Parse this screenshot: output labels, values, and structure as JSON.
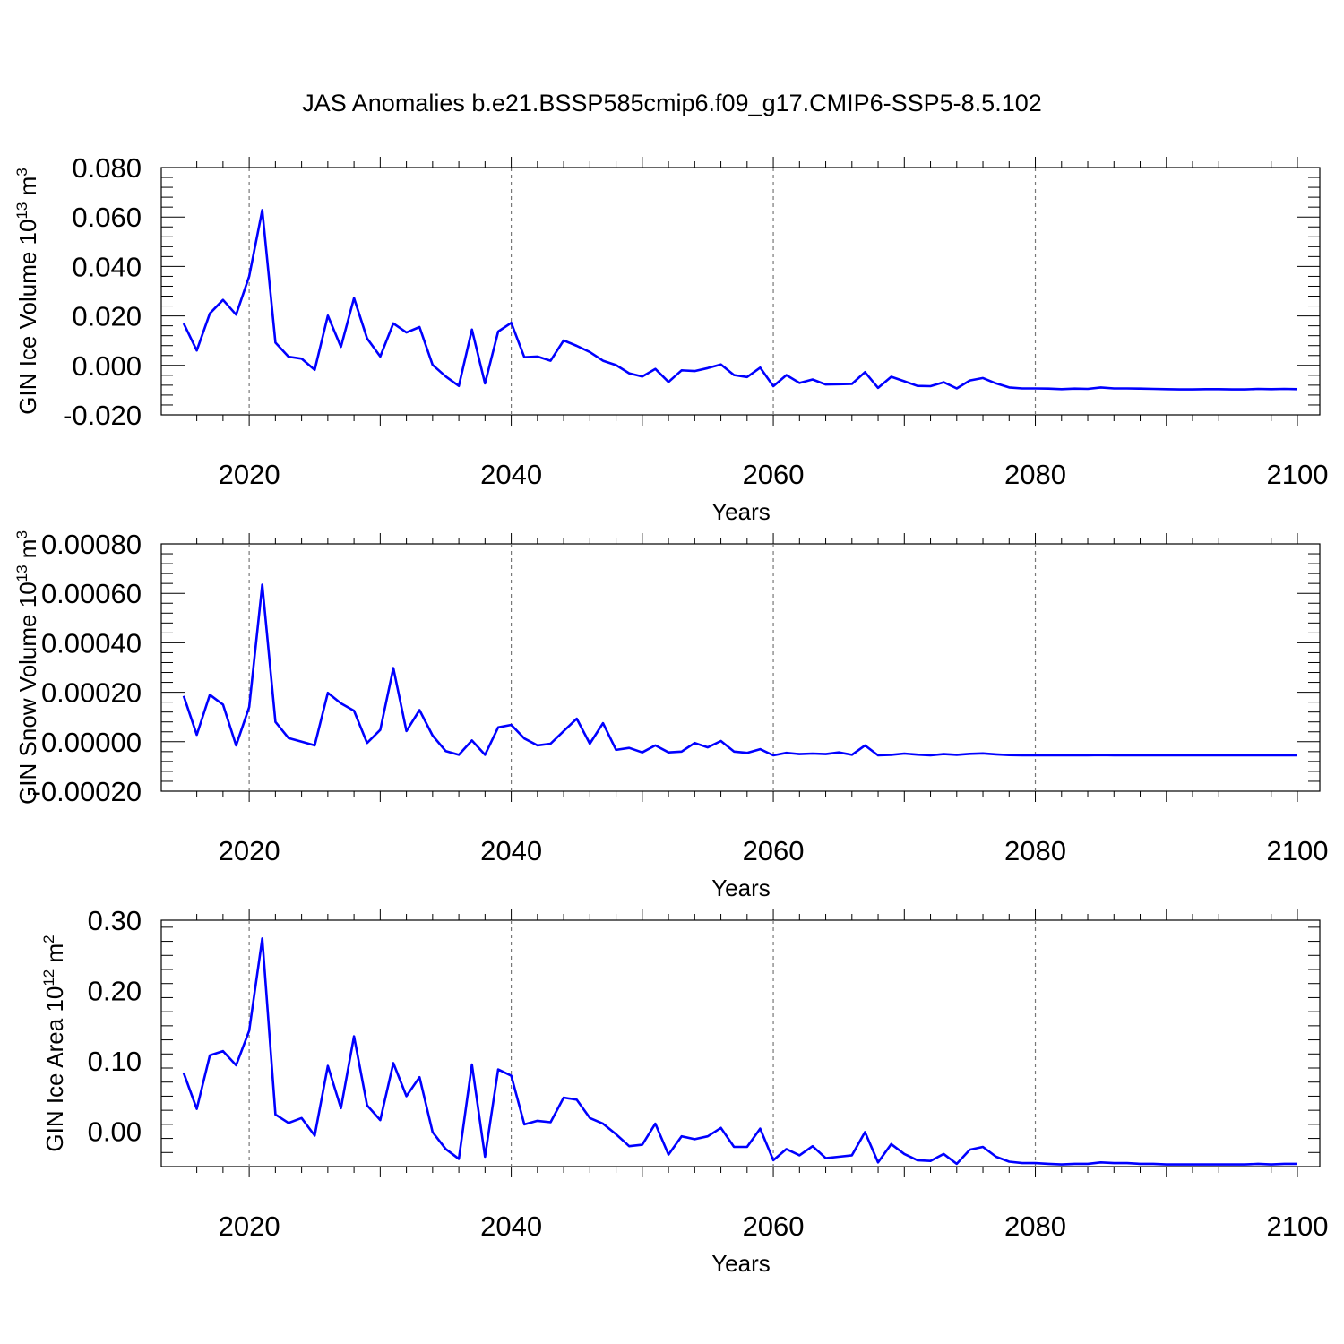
{
  "title": "JAS Anomalies b.e21.BSSP585cmip6.f09_g17.CMIP6-SSP5-8.5.102",
  "series_color": "#0000ff",
  "chart_data": [
    {
      "type": "line",
      "ylabel": {
        "main": "GIN Ice Volume 10",
        "exp": "13",
        "unit": " m",
        "unit_exp": "3"
      },
      "xlabel": "Years",
      "xlim": [
        2015,
        2100
      ],
      "ylim": [
        -0.02,
        0.08
      ],
      "yticks": [
        -0.02,
        0.0,
        0.02,
        0.04,
        0.06,
        0.08
      ],
      "ytick_labels": [
        "-0.020",
        "0.000",
        "0.020",
        "0.040",
        "0.060",
        "0.080"
      ],
      "xticks": [
        2020,
        2040,
        2060,
        2080,
        2100
      ],
      "xtick_labels": [
        "2020",
        "2040",
        "2060",
        "2080",
        "2100"
      ],
      "grid_x": [
        2020,
        2040,
        2060,
        2080
      ],
      "x": [
        2015,
        2016,
        2017,
        2018,
        2019,
        2020,
        2021,
        2022,
        2023,
        2024,
        2025,
        2026,
        2027,
        2028,
        2029,
        2030,
        2031,
        2032,
        2033,
        2034,
        2035,
        2036,
        2037,
        2038,
        2039,
        2040,
        2041,
        2042,
        2043,
        2044,
        2045,
        2046,
        2047,
        2048,
        2049,
        2050,
        2051,
        2052,
        2053,
        2054,
        2055,
        2056,
        2057,
        2058,
        2059,
        2060,
        2061,
        2062,
        2063,
        2064,
        2065,
        2066,
        2067,
        2068,
        2069,
        2070,
        2071,
        2072,
        2073,
        2074,
        2075,
        2076,
        2077,
        2078,
        2079,
        2080,
        2081,
        2082,
        2083,
        2084,
        2085,
        2086,
        2087,
        2088,
        2089,
        2090,
        2091,
        2092,
        2093,
        2094,
        2095,
        2096,
        2097,
        2098,
        2099,
        2100
      ],
      "y": [
        0.017,
        0.006,
        0.021,
        0.0265,
        0.0205,
        0.036,
        0.0628,
        0.0092,
        0.0035,
        0.0027,
        -0.0018,
        0.0201,
        0.0075,
        0.0272,
        0.0109,
        0.0036,
        0.017,
        0.0133,
        0.0155,
        0.0002,
        -0.0045,
        -0.0083,
        0.0145,
        -0.0073,
        0.0137,
        0.0172,
        0.0033,
        0.0036,
        0.0019,
        0.0101,
        0.0079,
        0.0054,
        0.0019,
        0.0001,
        -0.0032,
        -0.0045,
        -0.0014,
        -0.0067,
        -0.002,
        -0.0023,
        -0.0011,
        0.0004,
        -0.0039,
        -0.0047,
        -0.0009,
        -0.0084,
        -0.0039,
        -0.0071,
        -0.0057,
        -0.0077,
        -0.0076,
        -0.0075,
        -0.0027,
        -0.0091,
        -0.0046,
        -0.0064,
        -0.0083,
        -0.0084,
        -0.0068,
        -0.0093,
        -0.0061,
        -0.0051,
        -0.0073,
        -0.0089,
        -0.0093,
        -0.0093,
        -0.0094,
        -0.0096,
        -0.0094,
        -0.0095,
        -0.0089,
        -0.0093,
        -0.0093,
        -0.0094,
        -0.0095,
        -0.0096,
        -0.0097,
        -0.0097,
        -0.0096,
        -0.0096,
        -0.0097,
        -0.0097,
        -0.0095,
        -0.0096,
        -0.0095,
        -0.0096
      ]
    },
    {
      "type": "line",
      "ylabel": {
        "main": "GIN Snow Volume 10",
        "exp": "13",
        "unit": " m",
        "unit_exp": "3"
      },
      "xlabel": "Years",
      "xlim": [
        2015,
        2100
      ],
      "ylim": [
        -0.0002,
        0.0008
      ],
      "yticks": [
        -0.0002,
        0.0,
        0.0002,
        0.0004,
        0.0006,
        0.0008
      ],
      "ytick_labels": [
        "-0.00020",
        "0.00000",
        "0.00020",
        "0.00040",
        "0.00060",
        "0.00080"
      ],
      "xticks": [
        2020,
        2040,
        2060,
        2080,
        2100
      ],
      "xtick_labels": [
        "2020",
        "2040",
        "2060",
        "2080",
        "2100"
      ],
      "grid_x": [
        2020,
        2040,
        2060,
        2080
      ],
      "x": [
        2015,
        2016,
        2017,
        2018,
        2019,
        2020,
        2021,
        2022,
        2023,
        2024,
        2025,
        2026,
        2027,
        2028,
        2029,
        2030,
        2031,
        2032,
        2033,
        2034,
        2035,
        2036,
        2037,
        2038,
        2039,
        2040,
        2041,
        2042,
        2043,
        2044,
        2045,
        2046,
        2047,
        2048,
        2049,
        2050,
        2051,
        2052,
        2053,
        2054,
        2055,
        2056,
        2057,
        2058,
        2059,
        2060,
        2061,
        2062,
        2063,
        2064,
        2065,
        2066,
        2067,
        2068,
        2069,
        2070,
        2071,
        2072,
        2073,
        2074,
        2075,
        2076,
        2077,
        2078,
        2079,
        2080,
        2081,
        2082,
        2083,
        2084,
        2085,
        2086,
        2087,
        2088,
        2089,
        2090,
        2091,
        2092,
        2093,
        2094,
        2095,
        2096,
        2097,
        2098,
        2099,
        2100
      ],
      "y": [
        0.000185,
        2.8e-05,
        0.00019,
        0.00015,
        -1.5e-05,
        0.00014,
        0.000635,
        8e-05,
        1.5e-05,
        0.0,
        -1.5e-05,
        0.000198,
        0.000155,
        0.000125,
        -5e-06,
        4.8e-05,
        0.000298,
        4.3e-05,
        0.000128,
        2.5e-05,
        -3.8e-05,
        -5.3e-05,
        5e-06,
        -5.3e-05,
        5.8e-05,
        6.8e-05,
        1.3e-05,
        -1.5e-05,
        -8e-06,
        4.3e-05,
        9.3e-05,
        -8e-06,
        7.5e-05,
        -3.3e-05,
        -2.5e-05,
        -4.3e-05,
        -1.5e-05,
        -4.3e-05,
        -4e-05,
        -5e-06,
        -2.3e-05,
        3e-06,
        -4e-05,
        -4.5e-05,
        -3e-05,
        -5.5e-05,
        -4.5e-05,
        -5e-05,
        -4.8e-05,
        -5e-05,
        -4.3e-05,
        -5.3e-05,
        -1.5e-05,
        -5.5e-05,
        -5.3e-05,
        -4.8e-05,
        -5.2e-05,
        -5.5e-05,
        -5e-05,
        -5.3e-05,
        -4.9e-05,
        -4.7e-05,
        -5.1e-05,
        -5.4e-05,
        -5.5e-05,
        -5.5e-05,
        -5.5e-05,
        -5.5e-05,
        -5.5e-05,
        -5.5e-05,
        -5.4e-05,
        -5.5e-05,
        -5.5e-05,
        -5.5e-05,
        -5.5e-05,
        -5.5e-05,
        -5.5e-05,
        -5.5e-05,
        -5.5e-05,
        -5.5e-05,
        -5.5e-05,
        -5.5e-05,
        -5.5e-05,
        -5.5e-05,
        -5.5e-05,
        -5.5e-05
      ]
    },
    {
      "type": "line",
      "ylabel": {
        "main": "GIN Ice Area 10",
        "exp": "12",
        "unit": " m",
        "unit_exp": "2"
      },
      "xlabel": "Years",
      "xlim": [
        2015,
        2100
      ],
      "ylim": [
        -0.05,
        0.3
      ],
      "yticks": [
        0.0,
        0.1,
        0.2,
        0.3
      ],
      "ytick_labels": [
        "0.00",
        "0.10",
        "0.20",
        "0.30"
      ],
      "xticks": [
        2020,
        2040,
        2060,
        2080,
        2100
      ],
      "xtick_labels": [
        "2020",
        "2040",
        "2060",
        "2080",
        "2100"
      ],
      "grid_x": [
        2020,
        2040,
        2060,
        2080
      ],
      "x": [
        2015,
        2016,
        2017,
        2018,
        2019,
        2020,
        2021,
        2022,
        2023,
        2024,
        2025,
        2026,
        2027,
        2028,
        2029,
        2030,
        2031,
        2032,
        2033,
        2034,
        2035,
        2036,
        2037,
        2038,
        2039,
        2040,
        2041,
        2042,
        2043,
        2044,
        2045,
        2046,
        2047,
        2048,
        2049,
        2050,
        2051,
        2052,
        2053,
        2054,
        2055,
        2056,
        2057,
        2058,
        2059,
        2060,
        2061,
        2062,
        2063,
        2064,
        2065,
        2066,
        2067,
        2068,
        2069,
        2070,
        2071,
        2072,
        2073,
        2074,
        2075,
        2076,
        2077,
        2078,
        2079,
        2080,
        2081,
        2082,
        2083,
        2084,
        2085,
        2086,
        2087,
        2088,
        2089,
        2090,
        2091,
        2092,
        2093,
        2094,
        2095,
        2096,
        2097,
        2098,
        2099,
        2100
      ],
      "y": [
        0.083,
        0.032,
        0.108,
        0.114,
        0.094,
        0.143,
        0.274,
        0.024,
        0.012,
        0.019,
        -0.006,
        0.093,
        0.033,
        0.135,
        0.037,
        0.016,
        0.097,
        0.05,
        0.077,
        -0.001,
        -0.025,
        -0.039,
        0.095,
        -0.036,
        0.088,
        0.079,
        0.01,
        0.015,
        0.013,
        0.048,
        0.045,
        0.019,
        0.011,
        -0.004,
        -0.021,
        -0.019,
        0.011,
        -0.033,
        -0.007,
        -0.011,
        -0.007,
        0.005,
        -0.022,
        -0.022,
        0.004,
        -0.041,
        -0.025,
        -0.034,
        -0.021,
        -0.038,
        -0.036,
        -0.034,
        -0.001,
        -0.044,
        -0.018,
        -0.032,
        -0.041,
        -0.042,
        -0.032,
        -0.046,
        -0.026,
        -0.022,
        -0.036,
        -0.043,
        -0.045,
        -0.045,
        -0.046,
        -0.047,
        -0.046,
        -0.046,
        -0.044,
        -0.045,
        -0.045,
        -0.046,
        -0.046,
        -0.047,
        -0.047,
        -0.047,
        -0.047,
        -0.047,
        -0.047,
        -0.047,
        -0.046,
        -0.047,
        -0.046,
        -0.046
      ]
    }
  ]
}
